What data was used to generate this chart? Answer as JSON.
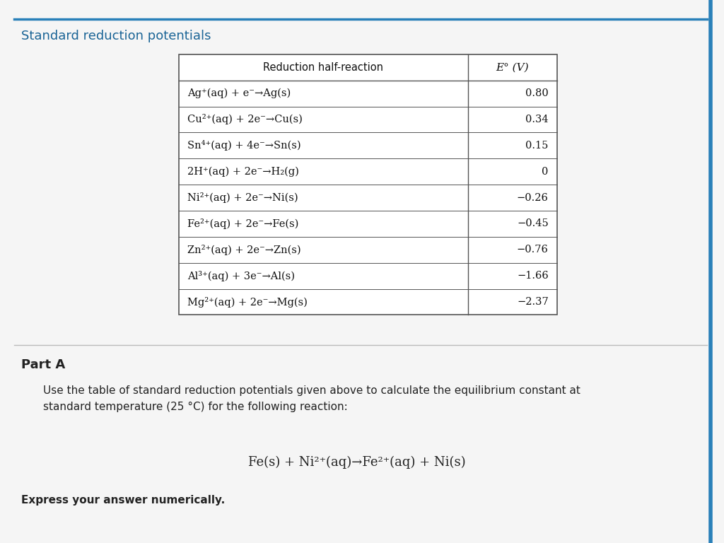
{
  "title": "Standard reduction potentials",
  "title_color": "#1a6496",
  "bg_color": "#f5f5f5",
  "table_header": [
    "Reduction half-reaction",
    "E° (V)"
  ],
  "table_rows": [
    [
      "Ag⁺(aq) + e⁻→Ag(s)",
      "0.80"
    ],
    [
      "Cu²⁺(aq) + 2e⁻→Cu(s)",
      "0.34"
    ],
    [
      "Sn⁴⁺(aq) + 4e⁻→Sn(s)",
      "0.15"
    ],
    [
      "2H⁺(aq) + 2e⁻→H₂(g)",
      "0"
    ],
    [
      "Ni²⁺(aq) + 2e⁻→Ni(s)",
      "−0.26"
    ],
    [
      "Fe²⁺(aq) + 2e⁻→Fe(s)",
      "−0.45"
    ],
    [
      "Zn²⁺(aq) + 2e⁻→Zn(s)",
      "−0.76"
    ],
    [
      "Al³⁺(aq) + 3e⁻→Al(s)",
      "−1.66"
    ],
    [
      "Mg²⁺(aq) + 2e⁻→Mg(s)",
      "−2.37"
    ]
  ],
  "part_a_label": "Part A",
  "part_a_text": "Use the table of standard reduction potentials given above to calculate the equilibrium constant at\nstandard temperature (25 °C) for the following reaction:",
  "reaction": "Fe(s) + Ni²⁺(aq)→Fe²⁺(aq) + Ni(s)",
  "answer_label": "Express your answer numerically.",
  "top_line_color": "#2980b9",
  "separator_color": "#bbbbbb",
  "text_color": "#222222"
}
